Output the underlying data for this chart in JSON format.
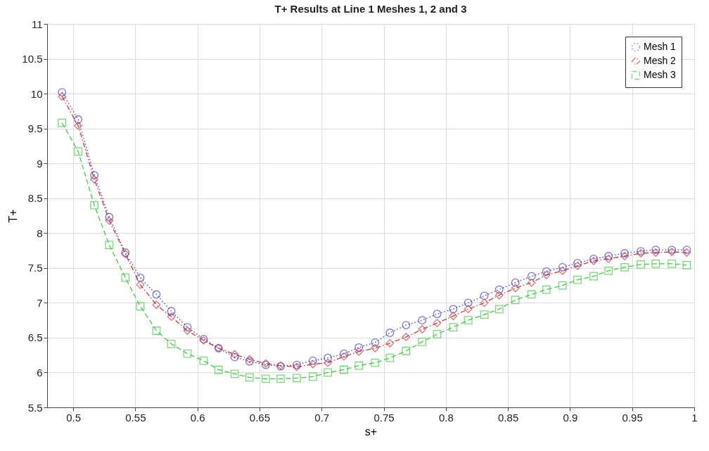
{
  "chart_data": {
    "type": "line",
    "title": "T+ Results at Line 1 Meshes 1, 2 and 3",
    "xlabel": "s+",
    "ylabel": "T+",
    "x": [
      0.491,
      0.504,
      0.517,
      0.529,
      0.542,
      0.554,
      0.567,
      0.579,
      0.592,
      0.605,
      0.617,
      0.63,
      0.642,
      0.655,
      0.667,
      0.68,
      0.693,
      0.705,
      0.718,
      0.73,
      0.743,
      0.755,
      0.768,
      0.781,
      0.793,
      0.806,
      0.818,
      0.831,
      0.843,
      0.856,
      0.869,
      0.881,
      0.894,
      0.906,
      0.919,
      0.931,
      0.944,
      0.957,
      0.969,
      0.982,
      0.994
    ],
    "series": [
      {
        "name": "Mesh 1",
        "color": "#3b3bd0",
        "marker": "circle",
        "line_style": "dotted",
        "values": [
          10.02,
          9.63,
          8.83,
          8.23,
          7.72,
          7.36,
          7.12,
          6.88,
          6.65,
          6.48,
          6.35,
          6.22,
          6.16,
          6.11,
          6.09,
          6.11,
          6.17,
          6.21,
          6.27,
          6.36,
          6.43,
          6.57,
          6.68,
          6.75,
          6.84,
          6.91,
          7.0,
          7.1,
          7.19,
          7.29,
          7.38,
          7.45,
          7.51,
          7.57,
          7.63,
          7.67,
          7.71,
          7.74,
          7.76,
          7.76,
          7.76
        ]
      },
      {
        "name": "Mesh 2",
        "color": "#d03a3a",
        "marker": "diamond",
        "line_style": "dashdot",
        "values": [
          9.96,
          9.54,
          8.77,
          8.18,
          7.7,
          7.26,
          6.97,
          6.8,
          6.6,
          6.46,
          6.35,
          6.26,
          6.19,
          6.13,
          6.1,
          6.08,
          6.12,
          6.14,
          6.23,
          6.3,
          6.35,
          6.42,
          6.51,
          6.62,
          6.71,
          6.81,
          6.91,
          7.0,
          7.11,
          7.21,
          7.29,
          7.4,
          7.46,
          7.53,
          7.6,
          7.63,
          7.67,
          7.71,
          7.72,
          7.73,
          7.72
        ]
      },
      {
        "name": "Mesh 3",
        "color": "#3ccf3c",
        "marker": "square",
        "line_style": "dashed",
        "values": [
          9.58,
          9.17,
          8.4,
          7.83,
          7.36,
          6.95,
          6.6,
          6.41,
          6.27,
          6.17,
          6.04,
          5.98,
          5.93,
          5.91,
          5.91,
          5.92,
          5.94,
          6.0,
          6.04,
          6.1,
          6.14,
          6.21,
          6.31,
          6.44,
          6.55,
          6.65,
          6.75,
          6.83,
          6.91,
          7.04,
          7.12,
          7.19,
          7.25,
          7.33,
          7.38,
          7.46,
          7.51,
          7.55,
          7.56,
          7.56,
          7.54
        ]
      }
    ],
    "xlim": [
      0.479,
      1
    ],
    "xticks": [
      0.5,
      0.55,
      0.6,
      0.65,
      0.7,
      0.75,
      0.8,
      0.85,
      0.9,
      0.95,
      1
    ],
    "ylim": [
      5.5,
      11
    ],
    "yticks": [
      5.5,
      6,
      6.5,
      7,
      7.5,
      8,
      8.5,
      9,
      9.5,
      10,
      10.5,
      11
    ],
    "grid": true,
    "legend": "top right"
  }
}
